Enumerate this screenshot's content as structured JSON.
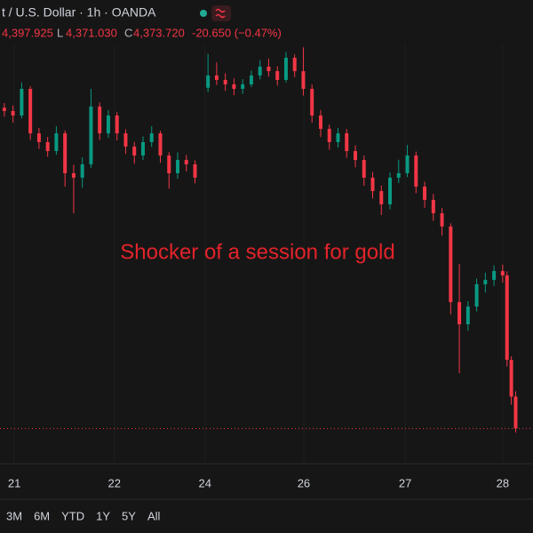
{
  "header": {
    "symbol": "t / U.S. Dollar · 1h · OANDA",
    "high": "4,397.925",
    "low_label": "L",
    "low": "4,371.030",
    "close_label": "C",
    "close": "4,373.720",
    "change": "-20.650 (−0.47%)"
  },
  "chart_data": {
    "type": "candlestick",
    "annotation": "Shocker of a session for gold",
    "up_color": "#089981",
    "down_color": "#f23645",
    "last_price_color": "#f23645",
    "xlim": [
      -3,
      120
    ],
    "ylim": [
      4352,
      4652
    ],
    "xticks": [
      {
        "value": 0.3,
        "label": "21"
      },
      {
        "value": 23.4,
        "label": "22"
      },
      {
        "value": 44.3,
        "label": "24"
      },
      {
        "value": 67.1,
        "label": "26"
      },
      {
        "value": 90.5,
        "label": "27"
      },
      {
        "value": 113,
        "label": "28"
      }
    ],
    "x": [
      -2,
      0,
      2,
      4,
      6,
      8,
      10,
      12,
      14,
      16,
      18,
      20,
      22,
      24,
      26,
      28,
      30,
      32,
      34,
      36,
      38,
      40,
      42,
      45,
      47,
      49,
      51,
      53,
      55,
      57,
      59,
      61,
      63,
      65,
      67,
      69,
      71,
      73,
      75,
      77,
      79,
      81,
      83,
      85,
      87,
      89,
      91,
      93,
      95,
      97,
      99,
      101,
      103,
      105,
      107,
      109,
      111,
      113,
      114,
      115,
      116
    ],
    "open": [
      4582.0,
      4579.9,
      4577.0,
      4594.3,
      4565.4,
      4559.7,
      4553.9,
      4565.4,
      4539.5,
      4536.6,
      4545.3,
      4582.8,
      4565.4,
      4577.0,
      4565.4,
      4556.8,
      4551.0,
      4559.7,
      4565.4,
      4551.0,
      4539.5,
      4548.1,
      4545.3,
      4595.0,
      4603.0,
      4600.1,
      4597.2,
      4594.3,
      4597.2,
      4603.0,
      4608.7,
      4605.8,
      4600.1,
      4614.5,
      4605.8,
      4594.3,
      4577.0,
      4568.3,
      4559.7,
      4565.4,
      4553.9,
      4548.1,
      4536.6,
      4527.9,
      4519.3,
      4536.6,
      4539.5,
      4551.0,
      4530.8,
      4522.2,
      4513.5,
      4504.9,
      4455.8,
      4441.4,
      4452.9,
      4467.4,
      4470.2,
      4476.0,
      4473.1,
      4418.3,
      4394.4
    ],
    "high": [
      4585.1,
      4583.5,
      4598.5,
      4596.0,
      4568.9,
      4563.1,
      4570.0,
      4567.3,
      4545.0,
      4549.8,
      4594.3,
      4585.5,
      4580.6,
      4579.2,
      4568.0,
      4559.9,
      4563.4,
      4570.1,
      4567.0,
      4553.2,
      4553.0,
      4551.4,
      4547.9,
      4617.0,
      4611.5,
      4604.4,
      4601.1,
      4600.6,
      4606.2,
      4612.9,
      4614.0,
      4609.0,
      4618.3,
      4616.7,
      4621.2,
      4597.1,
      4580.4,
      4571.1,
      4569.0,
      4568.2,
      4557.6,
      4551.0,
      4540.2,
      4531.5,
      4540.0,
      4548.3,
      4557.8,
      4553.6,
      4534.0,
      4526.0,
      4516.9,
      4507.0,
      4480.6,
      4456.5,
      4471.0,
      4474.9,
      4479.7,
      4480.2,
      4475.8,
      4420.6,
      4397.9
    ],
    "low": [
      4576.2,
      4572.4,
      4575.1,
      4561.2,
      4555.3,
      4550.2,
      4551.5,
      4530.8,
      4513.5,
      4530.1,
      4543.0,
      4561.0,
      4562.5,
      4560.8,
      4552.1,
      4545.7,
      4548.2,
      4556.6,
      4546.3,
      4529.5,
      4536.0,
      4540.7,
      4532.9,
      4592.1,
      4596.8,
      4593.0,
      4590.2,
      4591.0,
      4595.5,
      4600.4,
      4602.3,
      4596.4,
      4598.5,
      4601.9,
      4590.0,
      4572.3,
      4563.0,
      4554.8,
      4556.2,
      4549.5,
      4543.3,
      4531.4,
      4523.1,
      4512.4,
      4516.0,
      4533.2,
      4537.0,
      4526.5,
      4517.1,
      4508.6,
      4499.0,
      4447.9,
      4409.7,
      4437.2,
      4449.8,
      4462.1,
      4466.3,
      4468.5,
      4414.0,
      4389.2,
      4371.0
    ],
    "close": [
      4579.9,
      4577.0,
      4594.3,
      4565.4,
      4559.7,
      4553.9,
      4565.4,
      4539.5,
      4536.6,
      4545.3,
      4582.8,
      4565.4,
      4577.0,
      4565.4,
      4556.8,
      4551.0,
      4559.7,
      4565.4,
      4551.0,
      4539.5,
      4548.1,
      4545.3,
      4536.6,
      4603.0,
      4600.1,
      4597.2,
      4594.3,
      4597.2,
      4603.0,
      4608.7,
      4605.8,
      4600.1,
      4614.5,
      4605.8,
      4594.3,
      4577.0,
      4568.3,
      4559.7,
      4565.4,
      4553.9,
      4548.1,
      4536.6,
      4527.9,
      4519.3,
      4536.6,
      4539.5,
      4551.0,
      4530.8,
      4522.2,
      4513.5,
      4504.9,
      4455.8,
      4441.4,
      4452.9,
      4467.4,
      4470.2,
      4476.0,
      4473.1,
      4418.3,
      4394.4,
      4373.7
    ]
  },
  "toolbar": [
    "3M",
    "6M",
    "YTD",
    "1Y",
    "5Y",
    "All"
  ]
}
